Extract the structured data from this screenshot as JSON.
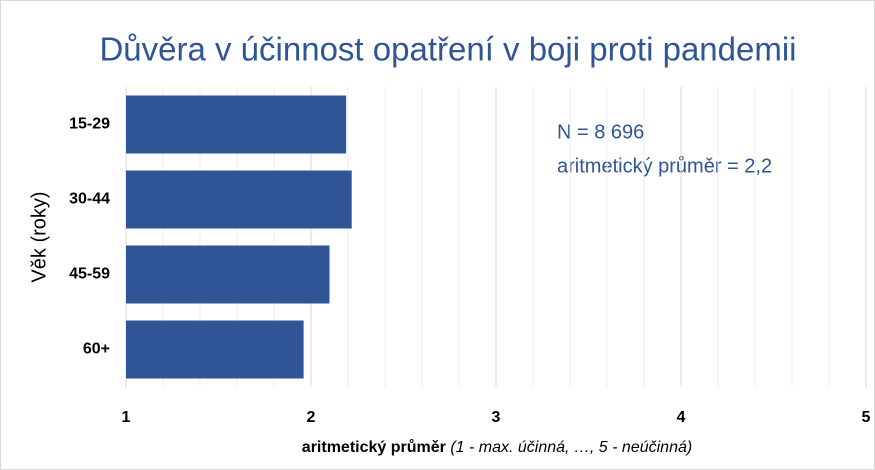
{
  "chart_data": {
    "type": "barh",
    "title": "Důvěra v účinnost opatření v boji proti pandemii",
    "categories": [
      "15-29",
      "30-44",
      "45-59",
      "60+"
    ],
    "values": [
      2.19,
      2.22,
      2.1,
      1.96
    ],
    "color": "#2f5597",
    "xlim": [
      1,
      5
    ],
    "xticks": [
      1,
      2,
      3,
      4,
      5
    ],
    "minor_grid_step": 0.2,
    "grid": true,
    "ylabel": "Věk (roky)",
    "xlabel": {
      "main": "aritmetický průměr",
      "note": "(1 - max. účinná, …, 5 - neúčinná)"
    },
    "annotations": [
      "N = 8 696",
      "aritmetický průměr = 2,2"
    ]
  }
}
